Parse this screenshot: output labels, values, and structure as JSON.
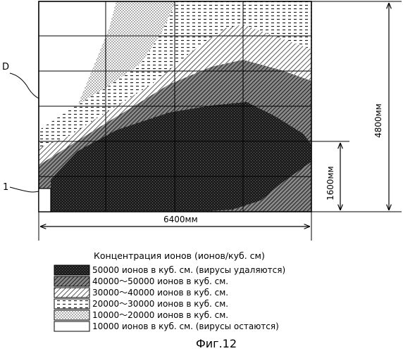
{
  "figure": {
    "label_D": "D",
    "label_1": "1",
    "width_dim": "6400мм",
    "height_dim_total": "4800мм",
    "height_dim_partial": "1600мм",
    "caption": "Фиг.12"
  },
  "legend": {
    "title": "Концентрация ионов (ионов/куб. см)",
    "items": [
      {
        "label": "50000 ионов в куб. см. (вирусы удаляются)",
        "pattern": "dark"
      },
      {
        "label": "40000～50000 ионов в куб. см.",
        "pattern": "dense-hatch"
      },
      {
        "label": "30000～40000 ионов в куб. см.",
        "pattern": "hatch"
      },
      {
        "label": "20000～30000 ионов в куб. см.",
        "pattern": "dash"
      },
      {
        "label": "10000～20000 ионов в куб. см.",
        "pattern": "dots"
      },
      {
        "label": "10000  ионов в куб. см. (вирусы остаются)",
        "pattern": "white"
      }
    ]
  }
}
